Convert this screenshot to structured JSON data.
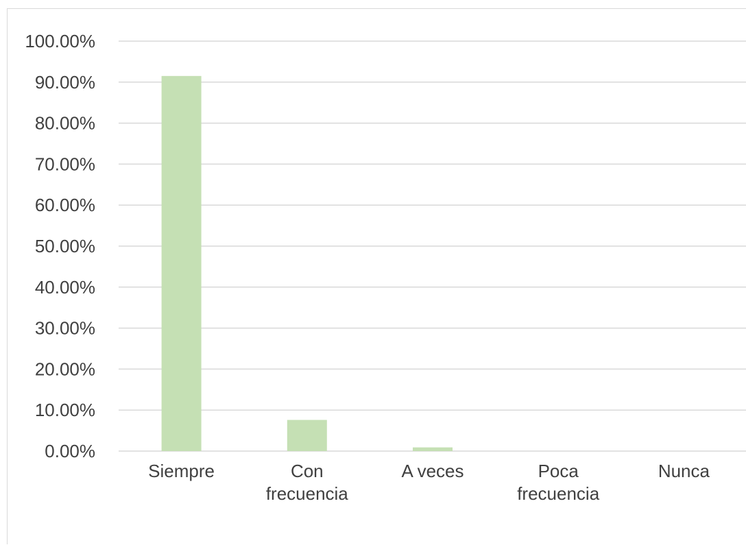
{
  "chart_data": {
    "type": "bar",
    "categories": [
      "Siempre",
      "Con frecuencia",
      "A veces",
      "Poca frecuencia",
      "Nunca"
    ],
    "category_label_lines": [
      [
        "Siempre"
      ],
      [
        "Con",
        "frecuencia"
      ],
      [
        "A veces"
      ],
      [
        "Poca",
        "frecuencia"
      ],
      [
        "Nunca"
      ]
    ],
    "values": [
      91.5,
      7.6,
      0.9,
      0,
      0
    ],
    "ylim": [
      0,
      100
    ],
    "y_ticks": [
      0,
      10,
      20,
      30,
      40,
      50,
      60,
      70,
      80,
      90,
      100
    ],
    "y_tick_labels": [
      "0.00%",
      "10.00%",
      "20.00%",
      "30.00%",
      "40.00%",
      "50.00%",
      "60.00%",
      "70.00%",
      "80.00%",
      "90.00%",
      "100.00%"
    ],
    "title": "",
    "xlabel": "",
    "ylabel": "",
    "grid": true,
    "legend": false,
    "colors": {
      "bar": "#c5e0b4",
      "grid": "#d9d9d9",
      "text": "#404040"
    }
  }
}
